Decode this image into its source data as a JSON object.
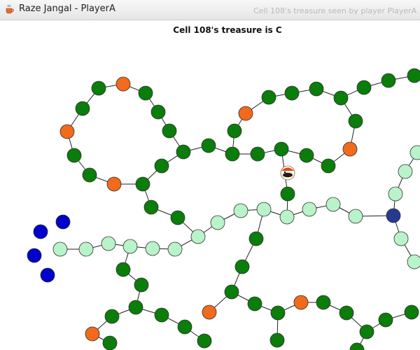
{
  "window": {
    "title": "Raze Jangal - PlayerA",
    "background_title": "Cell 108's treasure seen by player PlayerA"
  },
  "status": {
    "message": "Cell 108's treasure is C"
  },
  "icons": {
    "app": "java-coffee-cup-icon",
    "player": "player-token-icon"
  },
  "colors": {
    "unvisited_cell": "#0a7d0a",
    "treasure_cell": "#f26a1b",
    "path_cell": "#b9f3c9",
    "current_cell": "#283a8f",
    "marker": "#0000cc",
    "edge": "#222222"
  }
}
